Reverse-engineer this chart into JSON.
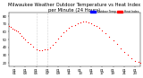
{
  "title": "Milwaukee Weather Outdoor Temperature vs Heat Index per Minute (24 Hours)",
  "background_color": "#ffffff",
  "dot_color": "#ff0000",
  "legend_temp_color": "#0000ff",
  "legend_heat_color": "#ff0000",
  "legend_temp_label": "Outdoor Temp",
  "legend_heat_label": "Heat Index",
  "x_ticks_labels": [
    "01\n01",
    "01\n03",
    "01\n05",
    "01\n07",
    "01\n09",
    "01\n11",
    "01\n13",
    "01\n15",
    "01\n17",
    "01\n19",
    "01\n21",
    "01\n23"
  ],
  "x_ticks": [
    60,
    180,
    300,
    420,
    540,
    660,
    780,
    900,
    1020,
    1140,
    1260,
    1380
  ],
  "ylim": [
    15,
    85
  ],
  "xlim": [
    0,
    1440
  ],
  "yticks": [
    20,
    30,
    40,
    50,
    60,
    70,
    80
  ],
  "grid_xticks": [
    300,
    420
  ],
  "grid_color": "#aaaaaa",
  "title_fontsize": 3.8,
  "tick_fontsize": 2.8,
  "data_x": [
    0,
    20,
    40,
    60,
    80,
    100,
    120,
    140,
    160,
    180,
    210,
    240,
    270,
    300,
    330,
    360,
    390,
    420,
    450,
    480,
    510,
    540,
    570,
    600,
    630,
    660,
    690,
    720,
    750,
    780,
    810,
    840,
    870,
    900,
    930,
    960,
    990,
    1020,
    1060,
    1100,
    1140,
    1180,
    1220,
    1260,
    1300,
    1340,
    1380,
    1420,
    1440
  ],
  "data_y": [
    67,
    66,
    64,
    63,
    62,
    60,
    58,
    55,
    52,
    50,
    47,
    44,
    41,
    38,
    36,
    36,
    37,
    38,
    40,
    43,
    47,
    51,
    55,
    59,
    62,
    65,
    67,
    69,
    71,
    72,
    73,
    73,
    72,
    71,
    69,
    67,
    65,
    62,
    58,
    54,
    49,
    44,
    39,
    34,
    30,
    26,
    23,
    21,
    20
  ]
}
